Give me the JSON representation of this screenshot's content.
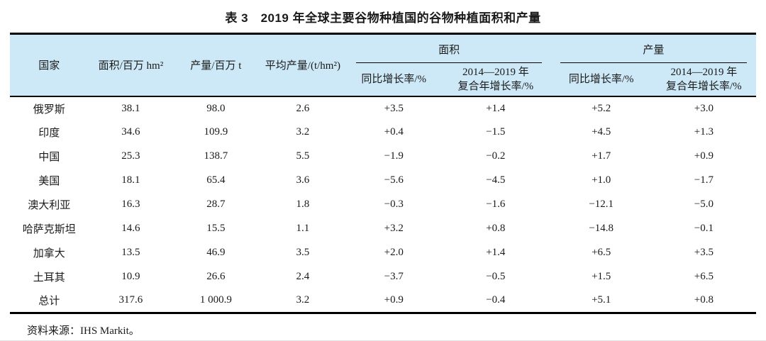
{
  "title": "表 3　2019 年全球主要谷物种植国的谷物种植面积和产量",
  "source": "资料来源：IHS Markit。",
  "colors": {
    "header_bg": "#cde8f6",
    "border": "#000000",
    "text": "#1a1a1a"
  },
  "table": {
    "header": {
      "country": "国家",
      "area_total": "面积/百万 hm²",
      "production_total": "产量/百万 t",
      "avg_yield": "平均产量/(t/hm²)",
      "area_group": "面积",
      "production_group": "产量",
      "area_yoy": "同比增长率/%",
      "area_cagr_line1": "2014—2019 年",
      "area_cagr_line2": "复合年增长率/%",
      "prod_yoy": "同比增长率/%",
      "prod_cagr_line1": "2014—2019 年",
      "prod_cagr_line2": "复合年增长率/%"
    },
    "rows": [
      {
        "country": "俄罗斯",
        "area": "38.1",
        "production": "98.0",
        "avg_yield": "2.6",
        "area_yoy": "+3.5",
        "area_cagr": "+1.4",
        "prod_yoy": "+5.2",
        "prod_cagr": "+3.0"
      },
      {
        "country": "印度",
        "area": "34.6",
        "production": "109.9",
        "avg_yield": "3.2",
        "area_yoy": "+0.4",
        "area_cagr": "−1.5",
        "prod_yoy": "+4.5",
        "prod_cagr": "+1.3"
      },
      {
        "country": "中国",
        "area": "25.3",
        "production": "138.7",
        "avg_yield": "5.5",
        "area_yoy": "−1.9",
        "area_cagr": "−0.2",
        "prod_yoy": "+1.7",
        "prod_cagr": "+0.9"
      },
      {
        "country": "美国",
        "area": "18.1",
        "production": "65.4",
        "avg_yield": "3.6",
        "area_yoy": "−5.6",
        "area_cagr": "−4.5",
        "prod_yoy": "+1.0",
        "prod_cagr": "−1.7"
      },
      {
        "country": "澳大利亚",
        "area": "16.3",
        "production": "28.7",
        "avg_yield": "1.8",
        "area_yoy": "−0.3",
        "area_cagr": "−1.6",
        "prod_yoy": "−12.1",
        "prod_cagr": "−5.0"
      },
      {
        "country": "哈萨克斯坦",
        "area": "14.6",
        "production": "15.5",
        "avg_yield": "1.1",
        "area_yoy": "+3.2",
        "area_cagr": "+0.8",
        "prod_yoy": "−14.8",
        "prod_cagr": "−0.1"
      },
      {
        "country": "加拿大",
        "area": "13.5",
        "production": "46.9",
        "avg_yield": "3.5",
        "area_yoy": "+2.0",
        "area_cagr": "+1.4",
        "prod_yoy": "+6.5",
        "prod_cagr": "+3.5"
      },
      {
        "country": "土耳其",
        "area": "10.9",
        "production": "26.6",
        "avg_yield": "2.4",
        "area_yoy": "−3.7",
        "area_cagr": "−0.5",
        "prod_yoy": "+1.5",
        "prod_cagr": "+6.5"
      },
      {
        "country": "总计",
        "area": "317.6",
        "production": "1 000.9",
        "avg_yield": "3.2",
        "area_yoy": "+0.9",
        "area_cagr": "−0.4",
        "prod_yoy": "+5.1",
        "prod_cagr": "+0.8"
      }
    ]
  }
}
